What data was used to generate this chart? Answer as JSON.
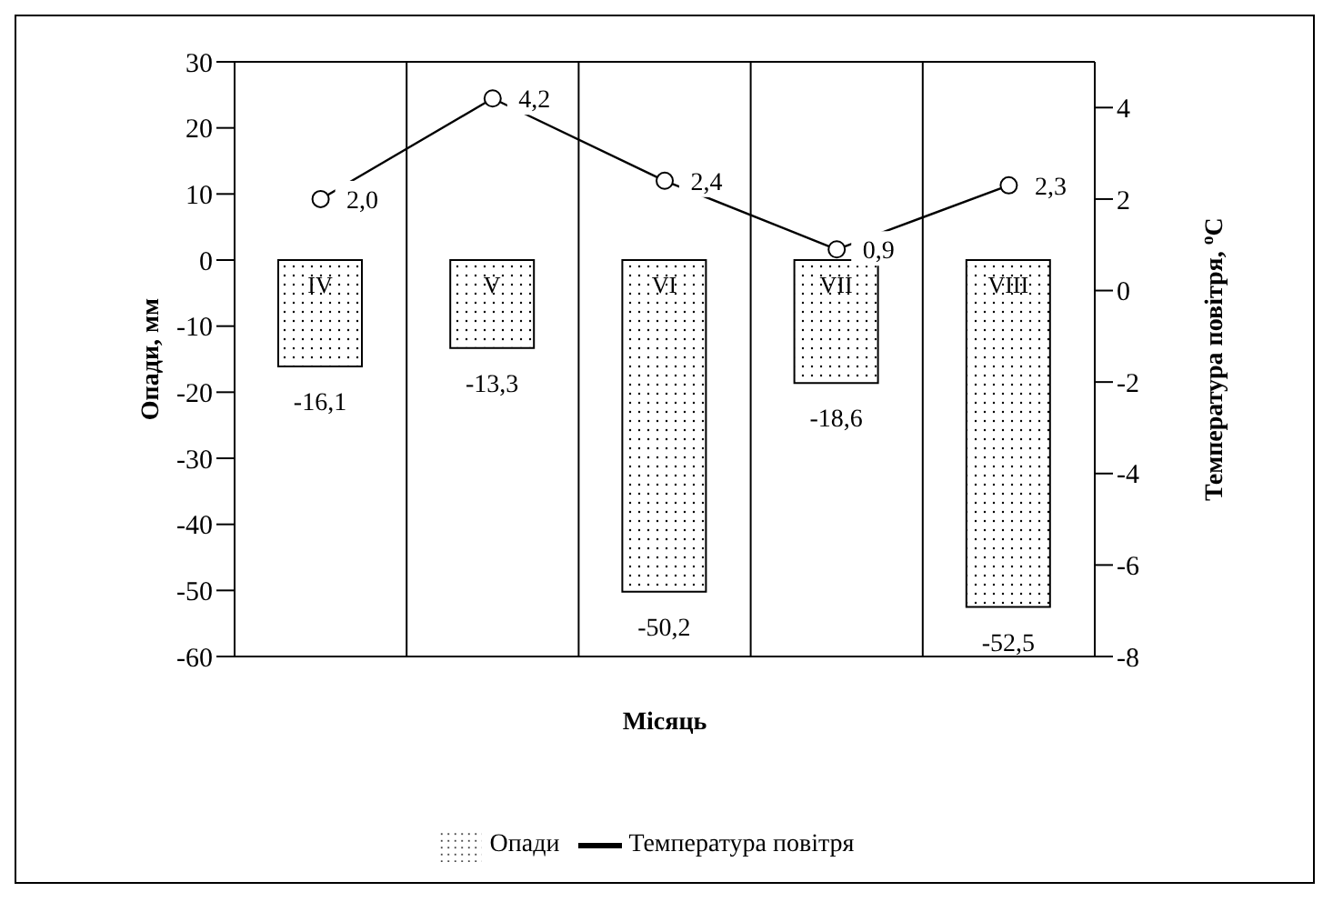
{
  "chart_data": {
    "type": "bar",
    "xlabel": "Місяць",
    "ylabel": "Опади, мм",
    "y2label": "Температура повітря, $^{o}$C",
    "categories": [
      "IV",
      "V",
      "VI",
      "VII",
      "VIII"
    ],
    "series": [
      {
        "name": "Опади",
        "color": "#000000",
        "values": [
          -16.1,
          -13.3,
          -50.2,
          -18.6,
          -52.5
        ],
        "value_labels": [
          "-16,1",
          "-13,3",
          "-50,2",
          "-18,6",
          "-52,5"
        ]
      },
      {
        "name": "Температура повітря",
        "type": "line",
        "axis": "y2",
        "color": "#000000",
        "marker": "circle",
        "values": [
          2.0,
          4.2,
          2.4,
          0.9,
          2.3
        ],
        "value_labels": [
          "2,0",
          "4,2",
          "2,4",
          "0,9",
          "2,3"
        ]
      }
    ],
    "ylim": [
      -60,
      30
    ],
    "yticks": [
      -60,
      -50,
      -40,
      -30,
      -20,
      -10,
      0,
      10,
      20,
      30
    ],
    "y2lim": [
      -8,
      5
    ],
    "y2ticks": [
      -8,
      -6,
      -4,
      -2,
      0,
      2,
      4
    ],
    "grid": true,
    "legend": "bottom"
  }
}
